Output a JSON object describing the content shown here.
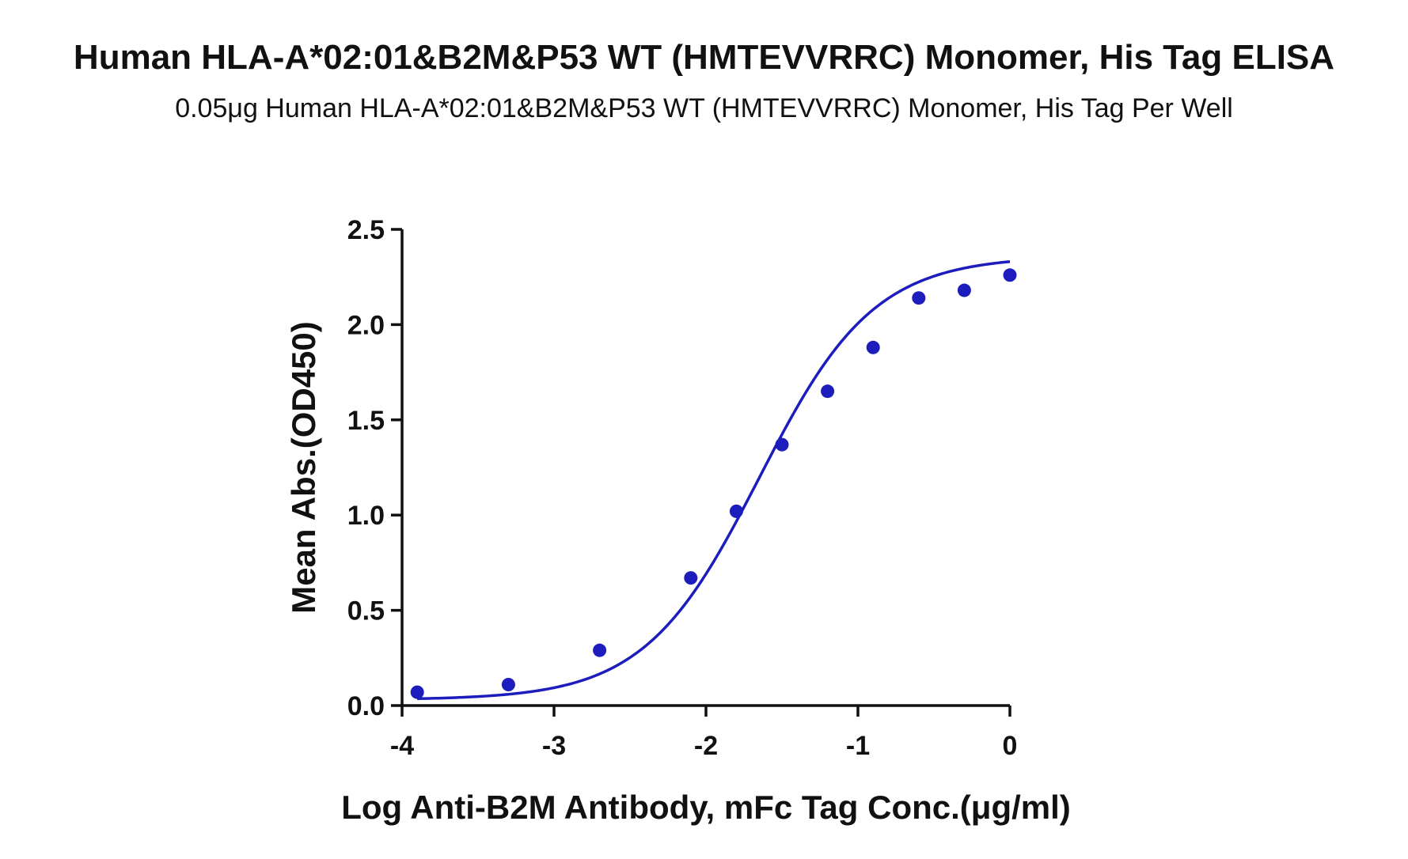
{
  "chart_data": {
    "type": "scatter",
    "title": "Human HLA-A*02:01&B2M&P53 WT (HMTEVVRRC) Monomer, His Tag ELISA",
    "subtitle": "0.05μg Human HLA-A*02:01&B2M&P53 WT (HMTEVVRRC) Monomer, His Tag Per Well",
    "xlabel": "Log Anti-B2M Antibody, mFc Tag Conc.(μg/ml)",
    "ylabel": "Mean Abs.(OD450)",
    "xlim": [
      -4,
      0
    ],
    "ylim": [
      0,
      2.5
    ],
    "xticks": [
      "-4",
      "-3",
      "-2",
      "-1",
      "0"
    ],
    "xtick_values": [
      -4,
      -3,
      -2,
      -1,
      0
    ],
    "yticks": [
      "0.0",
      "0.5",
      "1.0",
      "1.5",
      "2.0",
      "2.5"
    ],
    "ytick_values": [
      0,
      0.5,
      1.0,
      1.5,
      2.0,
      2.5
    ],
    "grid": false,
    "series": [
      {
        "x": [
          -3.9,
          -3.3,
          -2.7,
          -2.1,
          -1.8,
          -1.5,
          -1.2,
          -0.9,
          -0.6,
          -0.3,
          0.0
        ],
        "y": [
          0.07,
          0.11,
          0.29,
          0.67,
          1.02,
          1.37,
          1.65,
          1.88,
          2.14,
          2.18,
          2.26
        ],
        "color": "#1d1dbe",
        "fit": "sigmoidal"
      }
    ]
  }
}
